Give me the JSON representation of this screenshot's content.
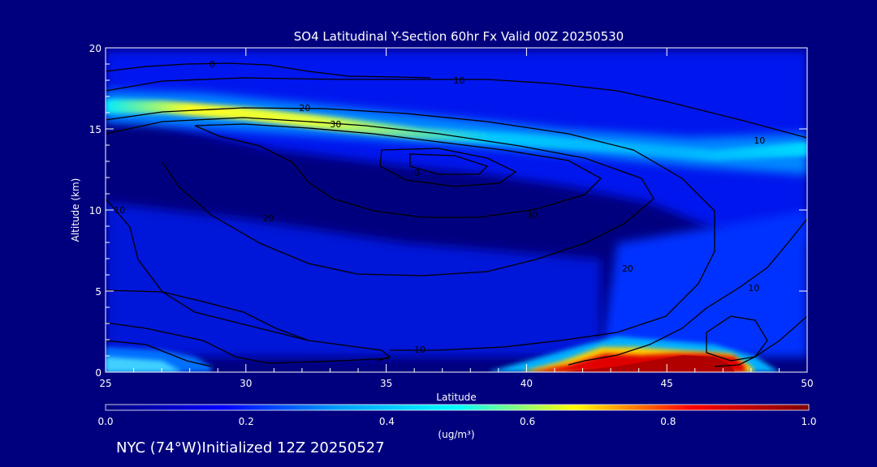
{
  "chart_data": {
    "type": "heatmap",
    "title": "SO4 Latitudinal Y-Section 60hr  Fx Valid 00Z 20250530",
    "xlabel": "Latitude",
    "ylabel": "Altitude (km)",
    "xlim": [
      25,
      50
    ],
    "ylim": [
      0,
      20
    ],
    "x_ticks": [
      25,
      30,
      35,
      40,
      45,
      50
    ],
    "y_ticks": [
      0,
      5,
      10,
      15,
      20
    ],
    "colorbar": {
      "label": "(ug/m³)",
      "min": 0.0,
      "max": 1.0,
      "ticks": [
        "0.0",
        "0.2",
        "0.4",
        "0.6",
        "0.8",
        "1.0"
      ],
      "colors": [
        "#00007f",
        "#0000ff",
        "#00a0ff",
        "#00ffff",
        "#ffff00",
        "#ff0000",
        "#7f0000"
      ]
    },
    "heat_features": [
      {
        "name": "upper-layer",
        "lat": [
          25,
          50
        ],
        "alt_center": [
          16.0,
          16.0,
          15.5,
          15.0,
          14.5,
          14.0
        ],
        "lat_nodes": [
          25,
          30,
          35,
          40,
          45,
          50
        ],
        "peak_value": 0.6
      },
      {
        "name": "surface-plume",
        "lat": [
          41,
          48
        ],
        "alt": [
          0,
          1.5
        ],
        "peak_value": 1.0
      }
    ],
    "contour_labels": [
      {
        "text": "0",
        "lat": 28.8,
        "alt": 19.0
      },
      {
        "text": "10",
        "lat": 37.6,
        "alt": 18.0
      },
      {
        "text": "20",
        "lat": 32.1,
        "alt": 16.3
      },
      {
        "text": "30",
        "lat": 33.2,
        "alt": 15.3
      },
      {
        "text": "10",
        "lat": 48.3,
        "alt": 14.3
      },
      {
        "text": "0",
        "lat": 36.1,
        "alt": 12.3
      },
      {
        "text": "10",
        "lat": 25.5,
        "alt": 10.0
      },
      {
        "text": "20",
        "lat": 30.8,
        "alt": 9.5
      },
      {
        "text": "30",
        "lat": 40.2,
        "alt": 9.7
      },
      {
        "text": "20",
        "lat": 43.6,
        "alt": 6.4
      },
      {
        "text": "10",
        "lat": 48.1,
        "alt": 5.2
      },
      {
        "text": "10",
        "lat": 36.2,
        "alt": 1.4
      }
    ]
  },
  "footer": {
    "location_init": "NYC (74°W)Initialized 12Z 20250527"
  }
}
